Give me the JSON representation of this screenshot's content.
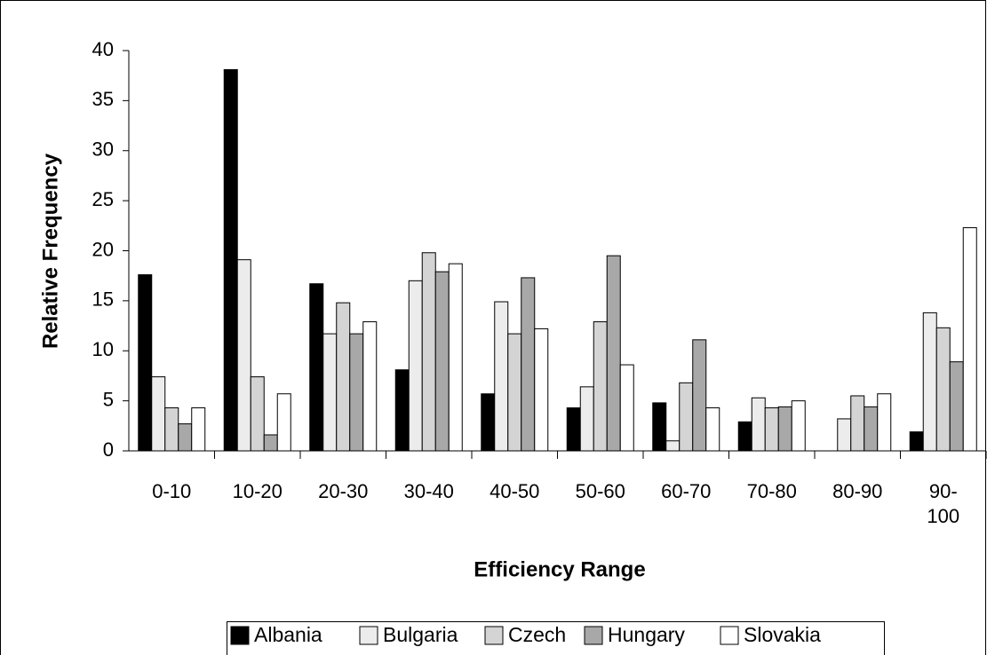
{
  "chart_data": {
    "type": "bar",
    "x_label": "Efficiency Range",
    "y_label": "Relative Frequency",
    "categories": [
      "0-10",
      "10-20",
      "20-30",
      "30-40",
      "40-50",
      "50-60",
      "60-70",
      "70-80",
      "80-90",
      "90-100"
    ],
    "series": [
      {
        "name": "Albania",
        "color": "#000000",
        "values": [
          17.6,
          38.1,
          16.7,
          8.1,
          5.7,
          4.3,
          4.8,
          2.9,
          0,
          1.9
        ]
      },
      {
        "name": "Bulgaria",
        "color": "#ececec",
        "values": [
          7.4,
          19.1,
          11.7,
          17.0,
          14.9,
          6.4,
          1.0,
          5.3,
          3.2,
          13.8
        ]
      },
      {
        "name": "Czech",
        "color": "#d4d4d4",
        "values": [
          4.3,
          7.4,
          14.8,
          19.8,
          11.7,
          12.9,
          6.8,
          4.3,
          5.5,
          12.3
        ]
      },
      {
        "name": "Hungary",
        "color": "#a8a8a8",
        "values": [
          2.7,
          1.6,
          11.7,
          17.9,
          17.3,
          19.5,
          11.1,
          4.4,
          4.4,
          8.9
        ]
      },
      {
        "name": "Slovakia",
        "color": "#ffffff",
        "values": [
          4.3,
          5.7,
          12.9,
          18.7,
          12.2,
          8.6,
          4.3,
          5.0,
          5.7,
          22.3
        ]
      }
    ],
    "ylim": [
      0,
      40
    ],
    "yticks": [
      0,
      5,
      10,
      15,
      20,
      25,
      30,
      35,
      40
    ],
    "grid": false,
    "legend": "bottom"
  }
}
